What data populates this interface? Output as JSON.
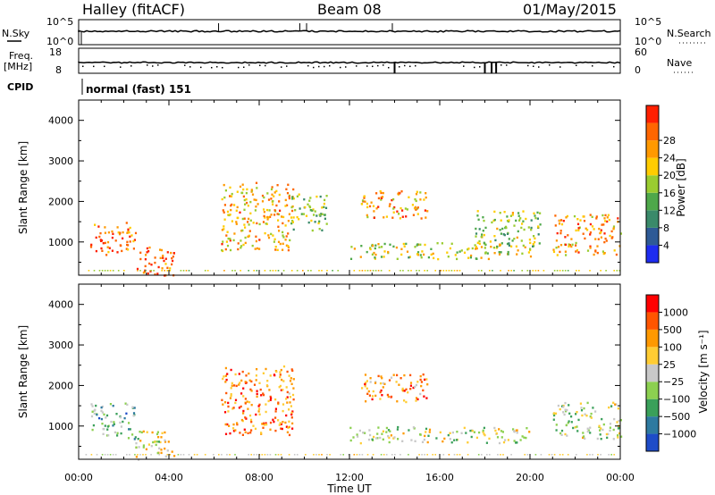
{
  "header": {
    "station": "Halley (fitACF)",
    "beam": "Beam 08",
    "date": "01/May/2015"
  },
  "strips": {
    "nsky_label": "N.Sky",
    "nsky_ticks": [
      "10^5",
      "10^0"
    ],
    "nsearch_label": "N.Search",
    "nsearch_ticks": [
      "10^5",
      "10^0"
    ],
    "freq_label": "Freq.",
    "freq_unit": "[MHz]",
    "freq_ticks": [
      "18",
      "8"
    ],
    "nave_label": "Nave",
    "nave_ticks": [
      "60",
      "0"
    ],
    "cpid_label": "CPID",
    "cpid_value": "normal (fast) 151"
  },
  "chart_data": [
    {
      "type": "heatmap",
      "panel": "power",
      "ylabel": "Slant Range [km]",
      "ylim": [
        180,
        4500
      ],
      "yticks": [
        "1000",
        "2000",
        "3000",
        "4000"
      ],
      "xlim_hours": [
        0,
        24
      ],
      "colorbar_label": "Power [dB]",
      "colorbar_ticks": [
        "4",
        "8",
        "12",
        "16",
        "20",
        "24",
        "28"
      ],
      "colorscale": [
        "#1e2cf0",
        "#2e5a96",
        "#3a8a6a",
        "#4ea84a",
        "#9acc30",
        "#ffcc00",
        "#ff9900",
        "#ff6600",
        "#ff2000"
      ],
      "echo_regions": [
        {
          "t_start": 0.5,
          "t_end": 2.5,
          "r_low": 700,
          "r_high": 1500,
          "level": 0.85
        },
        {
          "t_start": 2.5,
          "t_end": 4.2,
          "r_low": 180,
          "r_high": 900,
          "level": 0.9
        },
        {
          "t_start": 6.3,
          "t_end": 9.5,
          "r_low": 800,
          "r_high": 2500,
          "level": 0.7
        },
        {
          "t_start": 9.3,
          "t_end": 11.0,
          "r_low": 1300,
          "r_high": 2200,
          "level": 0.45
        },
        {
          "t_start": 12.5,
          "t_end": 15.5,
          "r_low": 1600,
          "r_high": 2300,
          "level": 0.75
        },
        {
          "t_start": 12.0,
          "t_end": 20.0,
          "r_low": 600,
          "r_high": 1000,
          "level": 0.55
        },
        {
          "t_start": 17.5,
          "t_end": 20.5,
          "r_low": 900,
          "r_high": 1800,
          "level": 0.5
        },
        {
          "t_start": 21.0,
          "t_end": 24.0,
          "r_low": 700,
          "r_high": 1700,
          "level": 0.75
        }
      ]
    },
    {
      "type": "heatmap",
      "panel": "velocity",
      "ylabel": "Slant Range [km]",
      "ylim": [
        180,
        4500
      ],
      "yticks": [
        "1000",
        "2000",
        "3000",
        "4000"
      ],
      "xlim_hours": [
        0,
        24
      ],
      "xlabel": "Time UT",
      "xticks": [
        "00:00",
        "04:00",
        "08:00",
        "12:00",
        "16:00",
        "20:00",
        "00:00"
      ],
      "colorbar_label": "Velocity [m s⁻¹]",
      "colorbar_ticks": [
        "1000",
        "500",
        "100",
        "25",
        "−25",
        "−100",
        "−500",
        "−1000"
      ],
      "colorscale": [
        "#1e4cc8",
        "#2e7aa0",
        "#3aa05a",
        "#8cd050",
        "#c8c8c8",
        "#ffcc33",
        "#ff9900",
        "#ff5500",
        "#ff0000"
      ],
      "echo_regions": [
        {
          "t_start": 0.5,
          "t_end": 2.5,
          "r_low": 700,
          "r_high": 1600,
          "level": 0.3
        },
        {
          "t_start": 2.5,
          "t_end": 4.2,
          "r_low": 180,
          "r_high": 900,
          "level": 0.55
        },
        {
          "t_start": 6.3,
          "t_end": 9.5,
          "r_low": 800,
          "r_high": 2500,
          "level": 0.8
        },
        {
          "t_start": 12.5,
          "t_end": 15.5,
          "r_low": 1600,
          "r_high": 2300,
          "level": 0.75
        },
        {
          "t_start": 12.0,
          "t_end": 20.0,
          "r_low": 600,
          "r_high": 1000,
          "level": 0.5
        },
        {
          "t_start": 21.0,
          "t_end": 24.0,
          "r_low": 700,
          "r_high": 1600,
          "level": 0.45
        }
      ]
    }
  ]
}
